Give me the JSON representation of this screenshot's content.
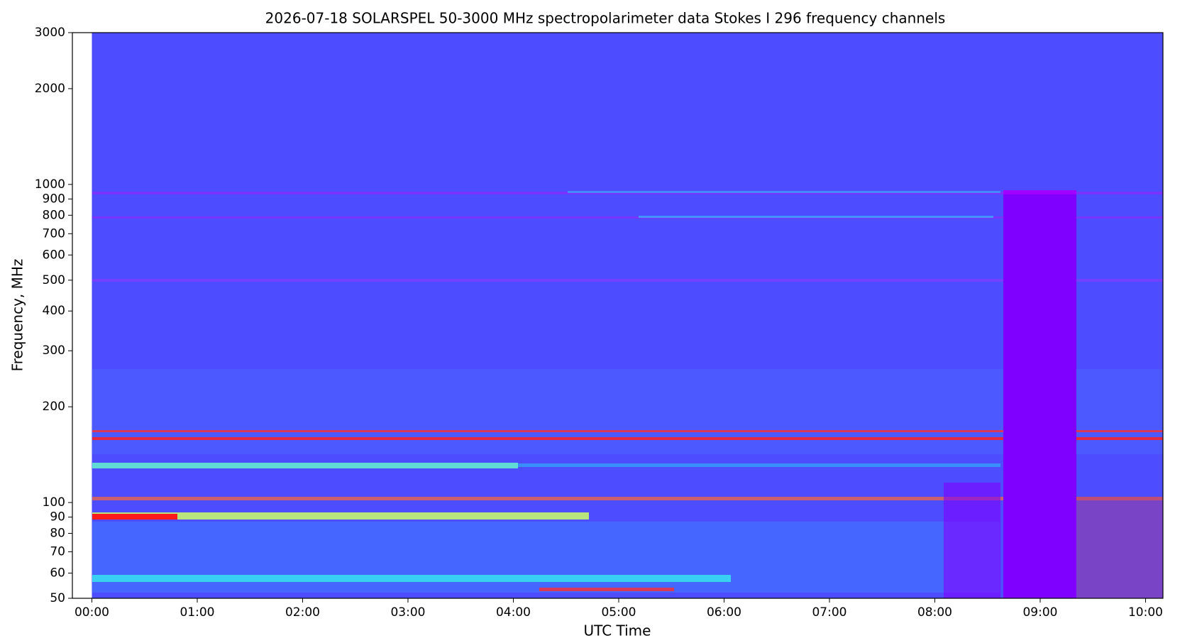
{
  "chart_data": {
    "type": "spectrogram",
    "title": "2026-07-18      SOLARSPEL   50-3000 MHz spectropolarimeter data      Stokes I   296 frequency channels",
    "x_label": "UTC Time",
    "y_label": "Frequency, MHz",
    "xlim": [
      -0.185,
      10.165
    ],
    "xticks": [
      {
        "value": 0,
        "label": "00:00"
      },
      {
        "value": 1,
        "label": "01:00"
      },
      {
        "value": 2,
        "label": "02:00"
      },
      {
        "value": 3,
        "label": "03:00"
      },
      {
        "value": 4,
        "label": "04:00"
      },
      {
        "value": 5,
        "label": "05:00"
      },
      {
        "value": 6,
        "label": "06:00"
      },
      {
        "value": 7,
        "label": "07:00"
      },
      {
        "value": 8,
        "label": "08:00"
      },
      {
        "value": 9,
        "label": "09:00"
      },
      {
        "value": 10,
        "label": "10:00"
      }
    ],
    "ylim": [
      50,
      3000
    ],
    "yticks": [
      50,
      60,
      70,
      80,
      90,
      100,
      200,
      300,
      400,
      500,
      600,
      700,
      800,
      900,
      1000,
      2000,
      3000
    ],
    "y_log": true,
    "color": "#4d4dff"
  }
}
